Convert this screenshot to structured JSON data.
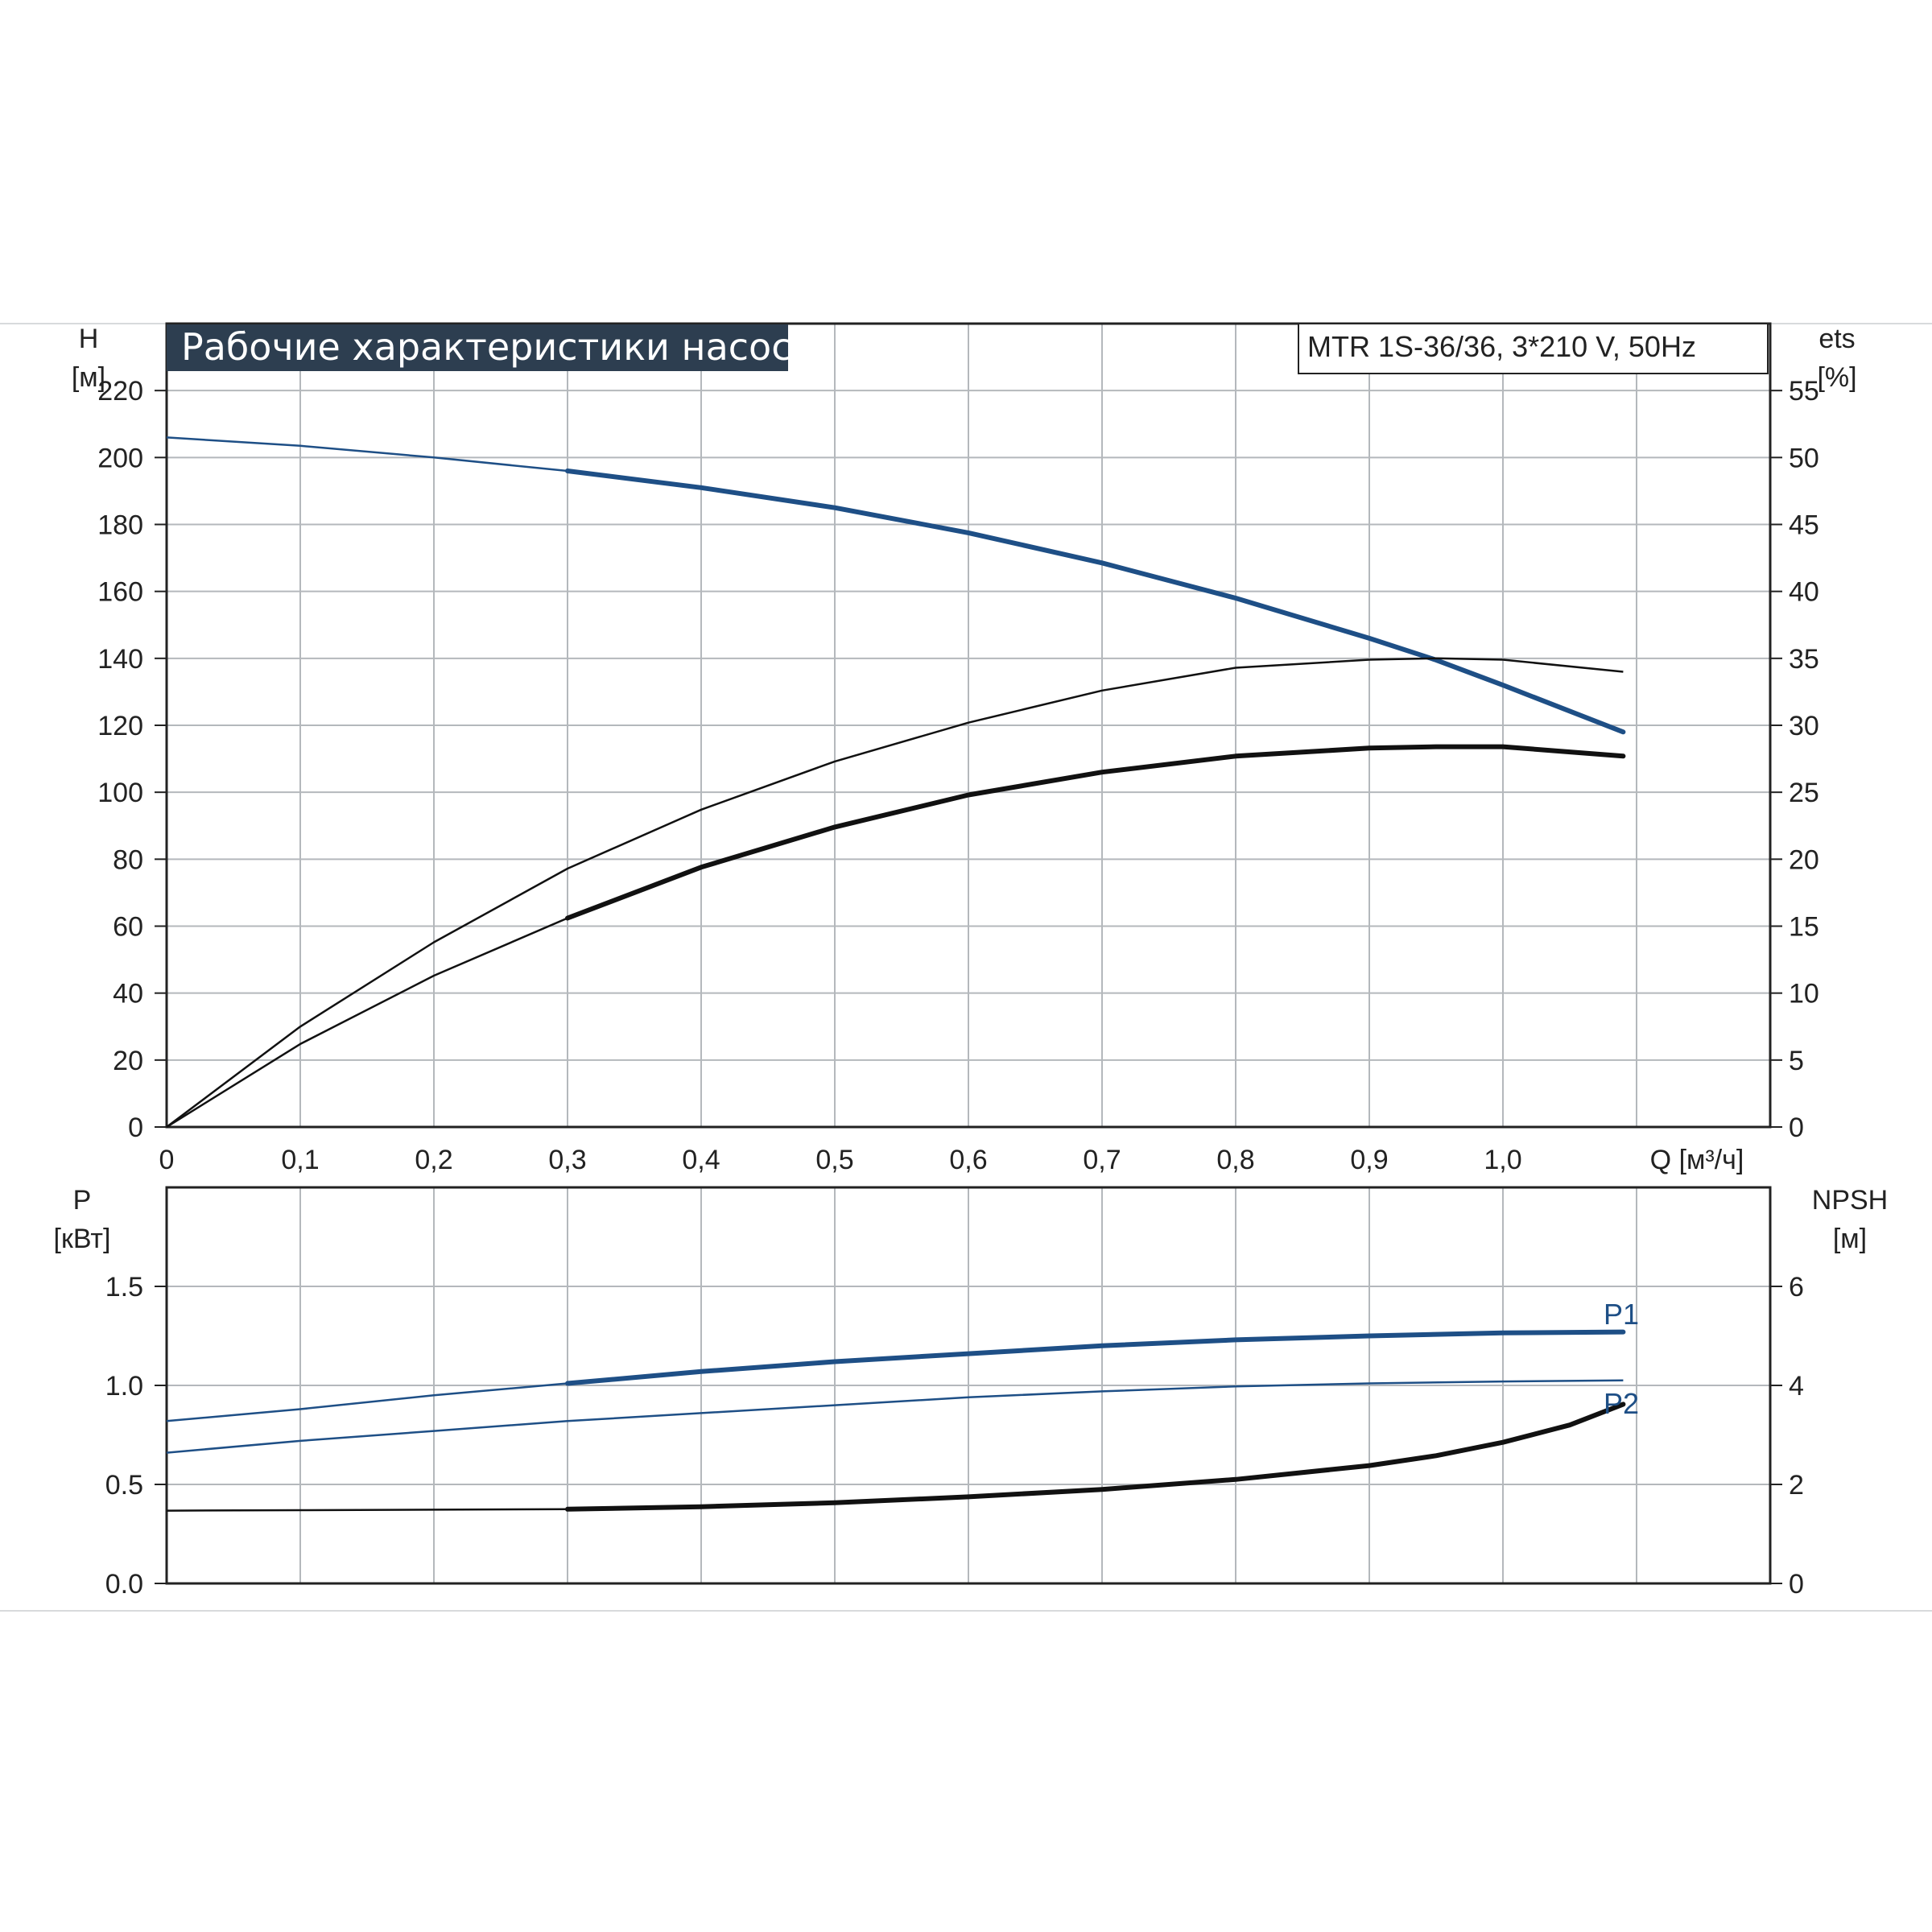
{
  "title": "Рабочие характеристики насоса",
  "model": "MTR 1S-36/36, 3*210 V, 50Hz",
  "colors": {
    "blue": "#1e4f86",
    "black": "#111111",
    "grid": "#b4b8bc",
    "title_bg": "#2d3e50"
  },
  "chart_data": [
    {
      "type": "line",
      "xlabel": "Q [м³/ч]",
      "x_ticks": [
        "0",
        "0,1",
        "0,2",
        "0,3",
        "0,4",
        "0,5",
        "0,6",
        "0,7",
        "0,8",
        "0,9",
        "1,0"
      ],
      "xlim": [
        0,
        1.2
      ],
      "y_left": {
        "label_top": "H",
        "label_unit": "[м]",
        "ylim": [
          0,
          240
        ],
        "ticks": [
          0,
          20,
          40,
          60,
          80,
          100,
          120,
          140,
          160,
          180,
          200,
          220
        ]
      },
      "y_right": {
        "label_top": "ets",
        "label_unit": "[%]",
        "ylim": [
          0,
          60
        ],
        "ticks": [
          0,
          5,
          10,
          15,
          20,
          25,
          30,
          35,
          40,
          45,
          50,
          55
        ]
      },
      "series": [
        {
          "axis": "left",
          "color": "blue",
          "x": [
            0,
            0.1,
            0.2,
            0.3,
            0.4,
            0.5,
            0.6,
            0.7,
            0.8,
            0.9,
            0.95,
            1.0,
            1.09
          ],
          "values": [
            206,
            203.5,
            200,
            196,
            191,
            185,
            177.5,
            168.5,
            158,
            146,
            139.5,
            132,
            118
          ],
          "bold_from": 0.3
        },
        {
          "axis": "right",
          "color": "black",
          "x": [
            0,
            0.1,
            0.2,
            0.3,
            0.4,
            0.5,
            0.6,
            0.7,
            0.8,
            0.9,
            0.95,
            1.0,
            1.09
          ],
          "values": [
            0,
            7.5,
            13.8,
            19.3,
            23.7,
            27.3,
            30.2,
            32.6,
            34.3,
            34.9,
            35,
            34.9,
            34
          ],
          "bold_from": 1.2
        },
        {
          "axis": "right",
          "color": "black",
          "x": [
            0,
            0.1,
            0.2,
            0.3,
            0.4,
            0.5,
            0.6,
            0.7,
            0.8,
            0.9,
            0.95,
            1.0,
            1.09
          ],
          "values": [
            0,
            6.2,
            11.3,
            15.6,
            19.4,
            22.4,
            24.8,
            26.5,
            27.7,
            28.3,
            28.4,
            28.4,
            27.7
          ],
          "bold_from": 0.3
        }
      ]
    },
    {
      "type": "line",
      "xlim": [
        0,
        1.2
      ],
      "y_left": {
        "label_top": "P",
        "label_unit": "[кВт]",
        "ylim": [
          0,
          2.0
        ],
        "ticks": [
          "0.0",
          "0.5",
          "1.0",
          "1.5"
        ]
      },
      "y_right": {
        "label_top": "NPSH",
        "label_unit": "[м]",
        "ylim": [
          0,
          8
        ],
        "ticks": [
          0,
          2,
          4,
          6
        ]
      },
      "series": [
        {
          "name": "P1",
          "axis": "left",
          "color": "blue",
          "x": [
            0,
            0.1,
            0.2,
            0.3,
            0.4,
            0.5,
            0.6,
            0.7,
            0.8,
            0.9,
            1.0,
            1.09
          ],
          "values": [
            0.82,
            0.88,
            0.95,
            1.01,
            1.07,
            1.12,
            1.16,
            1.2,
            1.23,
            1.25,
            1.265,
            1.27
          ],
          "bold_from": 0.3
        },
        {
          "name": "P2",
          "axis": "left",
          "color": "blue",
          "x": [
            0,
            0.1,
            0.2,
            0.3,
            0.4,
            0.5,
            0.6,
            0.7,
            0.8,
            0.9,
            1.0,
            1.09
          ],
          "values": [
            0.66,
            0.72,
            0.77,
            0.82,
            0.86,
            0.9,
            0.94,
            0.97,
            0.995,
            1.01,
            1.02,
            1.025
          ],
          "bold_from": 1.2
        },
        {
          "axis": "right",
          "color": "black",
          "x": [
            0,
            0.1,
            0.2,
            0.3,
            0.4,
            0.5,
            0.6,
            0.7,
            0.8,
            0.9,
            0.95,
            1.0,
            1.05,
            1.09
          ],
          "values": [
            1.47,
            1.48,
            1.49,
            1.5,
            1.55,
            1.63,
            1.75,
            1.9,
            2.1,
            2.38,
            2.58,
            2.85,
            3.2,
            3.62
          ],
          "bold_from": 0.3
        }
      ]
    }
  ]
}
